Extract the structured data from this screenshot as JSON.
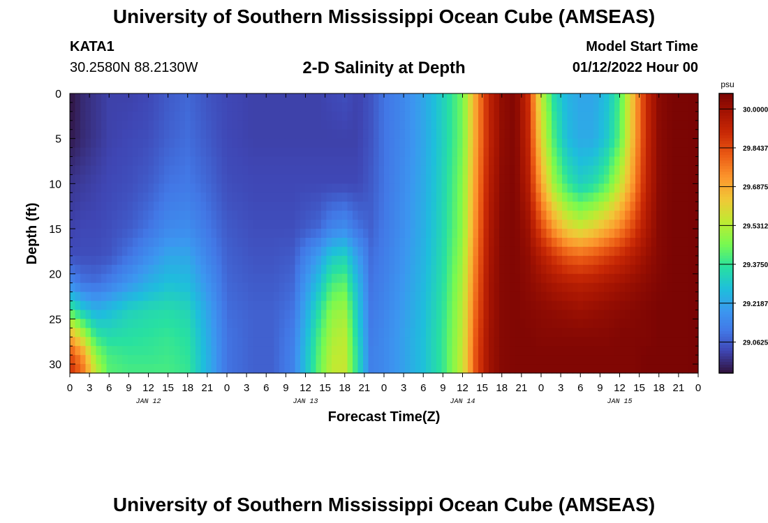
{
  "header": {
    "title": "University of Southern Mississippi Ocean Cube (AMSEAS)",
    "station_id": "KATA1",
    "station_coords": "30.2580N  88.2130W",
    "plot_title": "2-D Salinity at Depth",
    "model_start_label": "Model Start Time",
    "model_start_value": "01/12/2022 Hour 00"
  },
  "footer": {
    "title": "University of Southern Mississippi Ocean Cube (AMSEAS)"
  },
  "chart_data": {
    "type": "heatmap",
    "title": "2-D Salinity at Depth",
    "xlabel": "Forecast Time(Z)",
    "ylabel": "Depth (ft)",
    "x_hours_range": [
      0,
      96
    ],
    "x_tick_step_hours": 3,
    "x_tick_labels": [
      "0",
      "3",
      "6",
      "9",
      "12",
      "15",
      "18",
      "21",
      "0",
      "3",
      "6",
      "9",
      "12",
      "15",
      "18",
      "21",
      "0",
      "3",
      "6",
      "9",
      "12",
      "15",
      "18",
      "21",
      "0",
      "3",
      "6",
      "9",
      "12",
      "15",
      "18",
      "21",
      "0"
    ],
    "date_labels": [
      {
        "label": "JAN 12",
        "hour": 12
      },
      {
        "label": "JAN 13",
        "hour": 36
      },
      {
        "label": "JAN 14",
        "hour": 60
      },
      {
        "label": "JAN 15",
        "hour": 84
      }
    ],
    "y_ticks": [
      0,
      5,
      10,
      15,
      20,
      25,
      30
    ],
    "ylim": [
      0,
      31
    ],
    "colorbar": {
      "unit": "psu",
      "range": [
        28.9375,
        30.0625
      ],
      "tick_labels": [
        "30.0000",
        "29.8437",
        "29.6875",
        "29.5312",
        "29.3750",
        "29.2187",
        "29.0625"
      ],
      "tick_values": [
        30.0,
        29.8437,
        29.6875,
        29.5312,
        29.375,
        29.2187,
        29.0625
      ]
    },
    "grid_x_hours": [
      0,
      2,
      4,
      6,
      9,
      12,
      15,
      18,
      21,
      24,
      28,
      31,
      34,
      38,
      40,
      42,
      44,
      46,
      48,
      51,
      54,
      57,
      60,
      62,
      64,
      66,
      68,
      70,
      72,
      74,
      76,
      78,
      80,
      82,
      84,
      86,
      88,
      90,
      92,
      94,
      96
    ],
    "grid_depth_ft": [
      0,
      5,
      10,
      15,
      18,
      21,
      24,
      27,
      29,
      31
    ],
    "salinity": [
      [
        28.94,
        28.98,
        29.0,
        29.02,
        29.02,
        29.03,
        29.06,
        29.08,
        29.05,
        29.03,
        29.02,
        29.02,
        29.02,
        29.02,
        29.03,
        29.04,
        29.02,
        29.05,
        29.1,
        29.15,
        29.22,
        29.32,
        29.45,
        29.7,
        29.92,
        30.02,
        30.05,
        29.9,
        29.55,
        29.35,
        29.25,
        29.22,
        29.22,
        29.28,
        29.4,
        29.65,
        29.9,
        30.03,
        30.06,
        30.06,
        30.07
      ],
      [
        28.95,
        28.98,
        29.0,
        29.02,
        29.03,
        29.04,
        29.07,
        29.09,
        29.06,
        29.03,
        29.02,
        29.02,
        29.02,
        29.02,
        29.02,
        29.02,
        29.02,
        29.05,
        29.1,
        29.15,
        29.22,
        29.32,
        29.45,
        29.7,
        29.92,
        30.02,
        30.05,
        29.92,
        29.6,
        29.4,
        29.27,
        29.23,
        29.23,
        29.3,
        29.42,
        29.66,
        29.9,
        30.03,
        30.06,
        30.06,
        30.07
      ],
      [
        29.0,
        29.01,
        29.02,
        29.03,
        29.04,
        29.06,
        29.1,
        29.11,
        29.08,
        29.04,
        29.03,
        29.03,
        29.03,
        29.03,
        29.03,
        29.03,
        29.03,
        29.06,
        29.1,
        29.16,
        29.23,
        29.33,
        29.47,
        29.72,
        29.94,
        30.03,
        30.05,
        29.95,
        29.7,
        29.5,
        29.38,
        29.32,
        29.35,
        29.42,
        29.55,
        29.72,
        29.92,
        30.03,
        30.06,
        30.06,
        30.07
      ],
      [
        29.02,
        29.03,
        29.03,
        29.04,
        29.06,
        29.1,
        29.15,
        29.16,
        29.11,
        29.06,
        29.04,
        29.04,
        29.04,
        29.08,
        29.14,
        29.16,
        29.1,
        29.07,
        29.11,
        29.17,
        29.24,
        29.34,
        29.48,
        29.74,
        29.96,
        30.04,
        30.05,
        30.0,
        29.85,
        29.72,
        29.62,
        29.58,
        29.62,
        29.68,
        29.75,
        29.85,
        29.96,
        30.04,
        30.06,
        30.06,
        30.07
      ],
      [
        29.04,
        29.04,
        29.04,
        29.05,
        29.1,
        29.16,
        29.22,
        29.22,
        29.14,
        29.07,
        29.05,
        29.05,
        29.06,
        29.2,
        29.3,
        29.32,
        29.2,
        29.09,
        29.12,
        29.18,
        29.25,
        29.35,
        29.5,
        29.76,
        29.97,
        30.04,
        30.05,
        30.02,
        29.95,
        29.88,
        29.82,
        29.8,
        29.82,
        29.86,
        29.9,
        29.95,
        30.0,
        30.04,
        30.06,
        30.06,
        30.07
      ],
      [
        29.15,
        29.1,
        29.09,
        29.12,
        29.18,
        29.24,
        29.28,
        29.27,
        29.18,
        29.08,
        29.06,
        29.06,
        29.08,
        29.28,
        29.4,
        29.42,
        29.26,
        29.1,
        29.13,
        29.19,
        29.26,
        29.36,
        29.52,
        29.78,
        29.98,
        30.04,
        30.05,
        30.03,
        30.0,
        29.97,
        29.95,
        29.94,
        29.95,
        29.97,
        29.99,
        30.01,
        30.03,
        30.05,
        30.06,
        30.06,
        30.07
      ],
      [
        29.4,
        29.3,
        29.24,
        29.27,
        29.32,
        29.34,
        29.35,
        29.33,
        29.22,
        29.09,
        29.07,
        29.07,
        29.1,
        29.35,
        29.48,
        29.5,
        29.3,
        29.11,
        29.14,
        29.2,
        29.27,
        29.37,
        29.54,
        29.8,
        29.98,
        30.04,
        30.05,
        30.04,
        30.03,
        30.02,
        30.01,
        30.0,
        30.01,
        30.02,
        30.03,
        30.04,
        30.05,
        30.06,
        30.06,
        30.06,
        30.07
      ],
      [
        29.7,
        29.55,
        29.38,
        29.35,
        29.36,
        29.37,
        29.38,
        29.36,
        29.24,
        29.1,
        29.07,
        29.07,
        29.12,
        29.4,
        29.52,
        29.54,
        29.33,
        29.12,
        29.15,
        29.21,
        29.28,
        29.38,
        29.55,
        29.82,
        29.99,
        30.04,
        30.05,
        30.05,
        30.04,
        30.04,
        30.04,
        30.04,
        30.04,
        30.04,
        30.05,
        30.05,
        30.05,
        30.06,
        30.06,
        30.06,
        30.07
      ],
      [
        29.85,
        29.72,
        29.48,
        29.4,
        29.38,
        29.38,
        29.39,
        29.37,
        29.25,
        29.1,
        29.07,
        29.07,
        29.13,
        29.42,
        29.54,
        29.55,
        29.35,
        29.13,
        29.15,
        29.21,
        29.28,
        29.38,
        29.56,
        29.83,
        29.99,
        30.04,
        30.05,
        30.05,
        30.05,
        30.05,
        30.05,
        30.05,
        30.05,
        30.05,
        30.05,
        30.05,
        30.06,
        30.06,
        30.06,
        30.06,
        30.07
      ],
      [
        29.9,
        29.78,
        29.55,
        29.42,
        29.4,
        29.4,
        29.4,
        29.38,
        29.25,
        29.1,
        29.07,
        29.07,
        29.13,
        29.43,
        29.55,
        29.56,
        29.35,
        29.13,
        29.15,
        29.21,
        29.28,
        29.38,
        29.56,
        29.83,
        29.99,
        30.04,
        30.05,
        30.05,
        30.05,
        30.05,
        30.05,
        30.05,
        30.05,
        30.05,
        30.05,
        30.05,
        30.06,
        30.06,
        30.06,
        30.06,
        30.07
      ]
    ]
  }
}
